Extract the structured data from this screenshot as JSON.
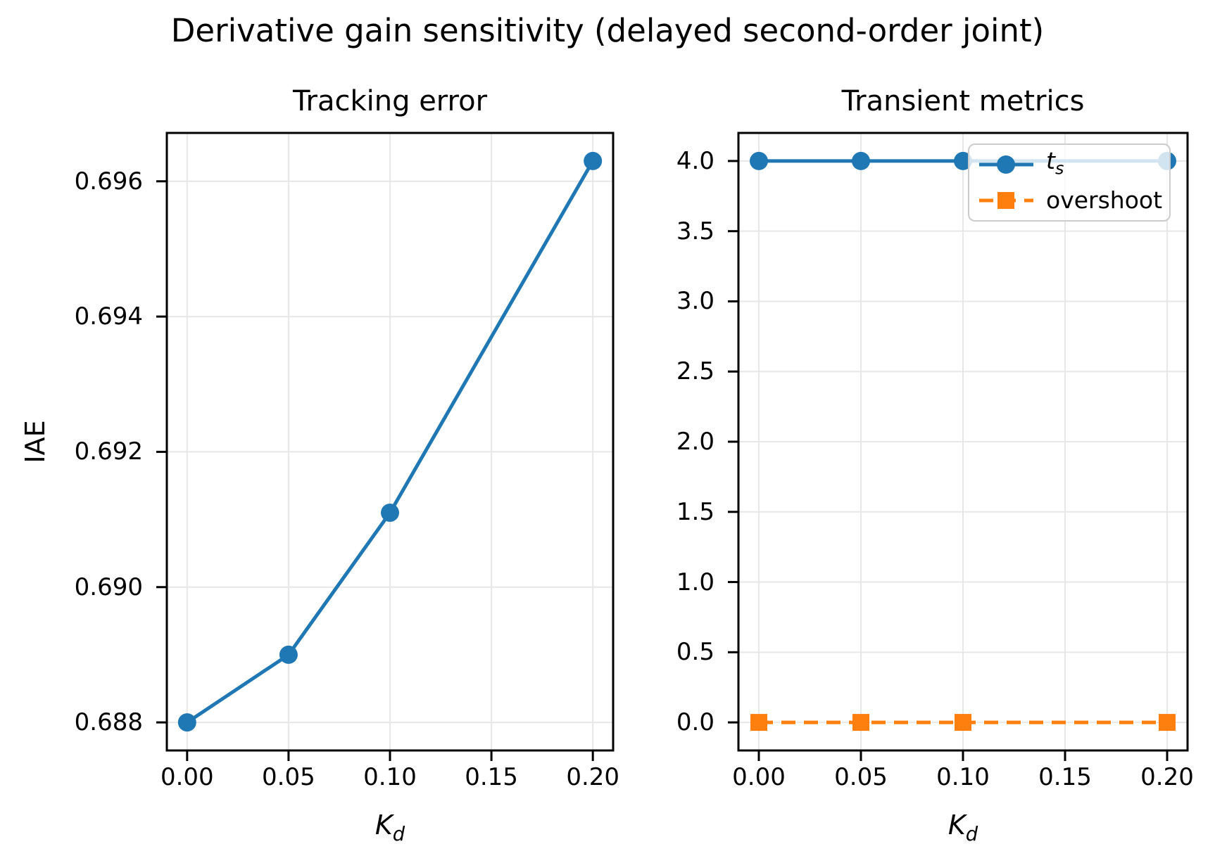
{
  "figure": {
    "suptitle": "Derivative gain sensitivity (delayed second-order joint)"
  },
  "left_plot": {
    "title": "Tracking error",
    "ylabel": "IAE",
    "xlabel": {
      "base": "K",
      "sub": "d"
    },
    "xtick_labels": [
      "0.00",
      "0.05",
      "0.10",
      "0.15",
      "0.20"
    ],
    "ytick_labels": [
      "0.688",
      "0.690",
      "0.692",
      "0.694",
      "0.696"
    ]
  },
  "right_plot": {
    "title": "Transient metrics",
    "xlabel": {
      "base": "K",
      "sub": "d"
    },
    "xtick_labels": [
      "0.00",
      "0.05",
      "0.10",
      "0.15",
      "0.20"
    ],
    "ytick_labels": [
      "0.0",
      "0.5",
      "1.0",
      "1.5",
      "2.0",
      "2.5",
      "3.0",
      "3.5",
      "4.0"
    ],
    "legend": {
      "items": [
        {
          "label": {
            "base": "t",
            "sub": "s"
          }
        },
        {
          "label": {
            "base": "overshoot",
            "sub": ""
          }
        }
      ]
    }
  },
  "colors": {
    "blue": "#1f77b4",
    "orange": "#ff7f0e",
    "grid": "#e7e7e7",
    "legend_border": "#cccccc",
    "text": "#000000"
  },
  "chart_data": [
    {
      "type": "line",
      "title": "Tracking error",
      "xlabel": "K_d",
      "ylabel": "IAE",
      "x": [
        0.0,
        0.05,
        0.1,
        0.2
      ],
      "series": [
        {
          "name": "IAE",
          "values": [
            0.688,
            0.689,
            0.6911,
            0.6963
          ],
          "color": "#1f77b4",
          "marker": "circle",
          "line": "solid"
        }
      ],
      "xticks": [
        0.0,
        0.05,
        0.1,
        0.15,
        0.2
      ],
      "yticks": [
        0.688,
        0.69,
        0.692,
        0.694,
        0.696
      ],
      "xlim": [
        -0.01,
        0.21
      ],
      "ylim": [
        0.687585,
        0.696715
      ],
      "grid": true,
      "legend": false
    },
    {
      "type": "line",
      "title": "Transient metrics",
      "xlabel": "K_d",
      "ylabel": "",
      "x": [
        0.0,
        0.05,
        0.1,
        0.2
      ],
      "series": [
        {
          "name": "t_s",
          "values": [
            4.0,
            4.0,
            4.0,
            4.0
          ],
          "color": "#1f77b4",
          "marker": "circle",
          "line": "solid"
        },
        {
          "name": "overshoot",
          "values": [
            0.0,
            0.0,
            0.0,
            0.0
          ],
          "color": "#ff7f0e",
          "marker": "square",
          "line": "dashed"
        }
      ],
      "xticks": [
        0.0,
        0.05,
        0.1,
        0.15,
        0.2
      ],
      "yticks": [
        0.0,
        0.5,
        1.0,
        1.5,
        2.0,
        2.5,
        3.0,
        3.5,
        4.0
      ],
      "xlim": [
        -0.01,
        0.21
      ],
      "ylim": [
        -0.2,
        4.2
      ],
      "grid": true,
      "legend": true,
      "legend_position": "upper right"
    }
  ]
}
